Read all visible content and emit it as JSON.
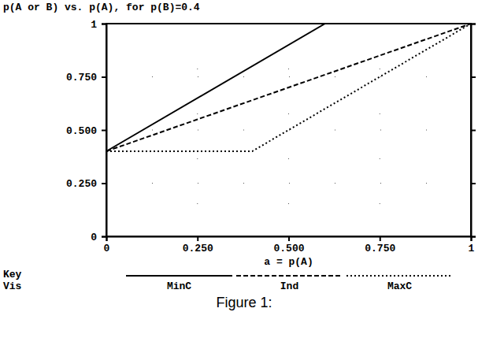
{
  "chart_data": {
    "type": "line",
    "title": "p(A or B) vs. p(A), for p(B)=0.4",
    "x_label": "a = p(A)",
    "legend_title": [
      "Key",
      "Vis"
    ],
    "caption": "Figure 1:",
    "xlim": [
      0,
      1
    ],
    "ylim": [
      0,
      1
    ],
    "xticks": [
      0,
      {
        "value": 0.25,
        "label": "0.250"
      },
      {
        "value": 0.5,
        "label": "0.500"
      },
      {
        "value": 0.75,
        "label": "0.750"
      },
      1
    ],
    "yticks": [
      0,
      {
        "value": 0.25,
        "label": "0.250"
      },
      {
        "value": 0.5,
        "label": "0.500"
      },
      {
        "value": 0.75,
        "label": "0.750"
      },
      1
    ],
    "grid": true,
    "legend": "bottom",
    "series": [
      {
        "name": "MinC",
        "color": "#000000",
        "line_style": "solid",
        "x": [
          0,
          0.6,
          1
        ],
        "values": [
          0.4,
          1,
          1
        ]
      },
      {
        "name": "Ind",
        "color": "#000000",
        "line_style": "dashed",
        "x": [
          0,
          0.25,
          0.5,
          0.75,
          1
        ],
        "values": [
          0.4,
          0.55,
          0.7,
          0.85,
          1
        ]
      },
      {
        "name": "MaxC",
        "color": "#000000",
        "line_style": "dotted",
        "x": [
          0,
          0.4,
          1
        ],
        "values": [
          0.4,
          0.4,
          1
        ]
      }
    ]
  }
}
